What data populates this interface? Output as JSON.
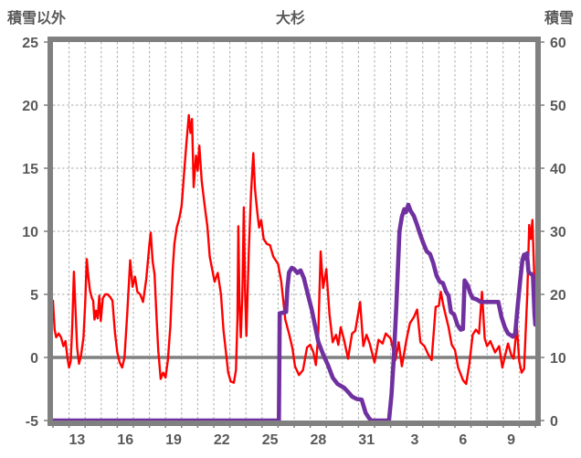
{
  "header": {
    "left_axis_title": "積雪以外",
    "chart_title": "大杉",
    "right_axis_title": "積雪"
  },
  "colors": {
    "temperature_line": "#ff0000",
    "snow_line": "#7030a0",
    "axis_border": "#808080",
    "zero_line": "#808080",
    "gridline": "#ababab",
    "label_text": "#595959",
    "background": "#ffffff"
  },
  "chart_data": {
    "type": "line",
    "title": "大杉",
    "x_axis": {
      "tick_labels": [
        "13",
        "16",
        "19",
        "22",
        "25",
        "28",
        "31",
        "3",
        "6",
        "9"
      ],
      "tick_day_offsets": [
        1.5,
        4.5,
        7.5,
        10.5,
        13.5,
        16.5,
        19.5,
        22.5,
        25.5,
        28.5
      ],
      "range_days": [
        0,
        30
      ],
      "gridline_every_days": 1
    },
    "y_left": {
      "title": "積雪以外",
      "ticks": [
        25,
        20,
        15,
        10,
        5,
        0,
        -5
      ],
      "range": [
        -5,
        25
      ],
      "zero_line_solid": true
    },
    "y_right": {
      "title": "積雪",
      "ticks": [
        60,
        50,
        40,
        30,
        20,
        10,
        0
      ],
      "range": [
        0,
        60
      ]
    },
    "grid": {
      "horizontal_dashed_at": [
        5,
        10,
        15,
        20
      ],
      "vertical_dashed": true
    },
    "legend": "none",
    "series": [
      {
        "name": "積雪以外",
        "axis": "left",
        "color": "#ff0000",
        "width": 2.4,
        "points": [
          [
            0,
            4.5
          ],
          [
            0.1,
            2.2
          ],
          [
            0.2,
            1.6
          ],
          [
            0.35,
            1.9
          ],
          [
            0.5,
            1.6
          ],
          [
            0.65,
            0.9
          ],
          [
            0.78,
            1.3
          ],
          [
            0.9,
            0.0
          ],
          [
            1.0,
            -0.8
          ],
          [
            1.1,
            -0.3
          ],
          [
            1.2,
            2.5
          ],
          [
            1.3,
            6.8
          ],
          [
            1.42,
            3.2
          ],
          [
            1.5,
            0.8
          ],
          [
            1.62,
            -0.5
          ],
          [
            1.75,
            0.2
          ],
          [
            1.9,
            1.6
          ],
          [
            2.0,
            4.2
          ],
          [
            2.1,
            7.8
          ],
          [
            2.2,
            6.4
          ],
          [
            2.3,
            5.3
          ],
          [
            2.42,
            4.7
          ],
          [
            2.5,
            4.5
          ],
          [
            2.58,
            3.0
          ],
          [
            2.68,
            3.7
          ],
          [
            2.78,
            3.1
          ],
          [
            2.88,
            4.9
          ],
          [
            2.97,
            2.9
          ],
          [
            3.1,
            4.7
          ],
          [
            3.25,
            5.0
          ],
          [
            3.4,
            5.0
          ],
          [
            3.55,
            4.8
          ],
          [
            3.7,
            4.5
          ],
          [
            3.85,
            2.0
          ],
          [
            4.0,
            0.4
          ],
          [
            4.15,
            -0.4
          ],
          [
            4.3,
            -0.8
          ],
          [
            4.45,
            0.0
          ],
          [
            4.62,
            3.5
          ],
          [
            4.8,
            7.7
          ],
          [
            4.95,
            5.6
          ],
          [
            5.1,
            6.4
          ],
          [
            5.25,
            5.2
          ],
          [
            5.42,
            5.0
          ],
          [
            5.6,
            4.4
          ],
          [
            5.8,
            6.2
          ],
          [
            6.0,
            9.0
          ],
          [
            6.08,
            9.9
          ],
          [
            6.2,
            7.6
          ],
          [
            6.32,
            6.6
          ],
          [
            6.45,
            3.0
          ],
          [
            6.55,
            0.5
          ],
          [
            6.7,
            -1.7
          ],
          [
            6.85,
            -1.2
          ],
          [
            7.0,
            -1.6
          ],
          [
            7.15,
            -0.2
          ],
          [
            7.3,
            2.5
          ],
          [
            7.45,
            7.0
          ],
          [
            7.55,
            9.0
          ],
          [
            7.7,
            10.3
          ],
          [
            7.85,
            11.0
          ],
          [
            8.0,
            12.0
          ],
          [
            8.15,
            14.5
          ],
          [
            8.3,
            17.0
          ],
          [
            8.45,
            19.2
          ],
          [
            8.55,
            17.8
          ],
          [
            8.65,
            18.9
          ],
          [
            8.75,
            13.5
          ],
          [
            8.9,
            16.0
          ],
          [
            9.0,
            14.8
          ],
          [
            9.1,
            16.8
          ],
          [
            9.25,
            14.0
          ],
          [
            9.44,
            12.0
          ],
          [
            9.6,
            10.4
          ],
          [
            9.75,
            8.0
          ],
          [
            9.9,
            7.0
          ],
          [
            10.05,
            6.0
          ],
          [
            10.25,
            6.7
          ],
          [
            10.45,
            5.0
          ],
          [
            10.6,
            2.2
          ],
          [
            10.75,
            0.5
          ],
          [
            10.9,
            -1.2
          ],
          [
            11.05,
            -1.9
          ],
          [
            11.25,
            -2.0
          ],
          [
            11.38,
            -1.0
          ],
          [
            11.47,
            3.0
          ],
          [
            11.53,
            10.4
          ],
          [
            11.6,
            4.2
          ],
          [
            11.68,
            1.6
          ],
          [
            11.78,
            5.0
          ],
          [
            11.87,
            11.9
          ],
          [
            11.95,
            5.2
          ],
          [
            12.03,
            1.7
          ],
          [
            12.18,
            8.5
          ],
          [
            12.32,
            13.0
          ],
          [
            12.46,
            16.2
          ],
          [
            12.56,
            13.4
          ],
          [
            12.7,
            11.6
          ],
          [
            12.82,
            10.3
          ],
          [
            12.95,
            10.9
          ],
          [
            13.1,
            9.4
          ],
          [
            13.3,
            9.0
          ],
          [
            13.5,
            8.9
          ],
          [
            13.7,
            8.0
          ],
          [
            13.85,
            7.7
          ],
          [
            14.0,
            7.4
          ],
          [
            14.2,
            6.0
          ],
          [
            14.45,
            3.0
          ],
          [
            14.7,
            1.8
          ],
          [
            14.9,
            0.7
          ],
          [
            15.05,
            -0.7
          ],
          [
            15.3,
            -1.4
          ],
          [
            15.55,
            -1.0
          ],
          [
            15.8,
            0.8
          ],
          [
            16.0,
            1.0
          ],
          [
            16.2,
            0.4
          ],
          [
            16.35,
            -0.6
          ],
          [
            16.5,
            1.8
          ],
          [
            16.65,
            8.4
          ],
          [
            16.8,
            5.5
          ],
          [
            17.0,
            7.0
          ],
          [
            17.2,
            3.4
          ],
          [
            17.4,
            1.2
          ],
          [
            17.6,
            1.8
          ],
          [
            17.75,
            1.0
          ],
          [
            17.9,
            2.4
          ],
          [
            18.1,
            1.4
          ],
          [
            18.35,
            -0.1
          ],
          [
            18.6,
            1.9
          ],
          [
            18.8,
            2.1
          ],
          [
            19.1,
            4.4
          ],
          [
            19.3,
            0.9
          ],
          [
            19.5,
            1.8
          ],
          [
            19.7,
            1.1
          ],
          [
            20.0,
            -0.4
          ],
          [
            20.25,
            1.4
          ],
          [
            20.5,
            1.1
          ],
          [
            20.7,
            1.9
          ],
          [
            21.0,
            1.5
          ],
          [
            21.3,
            -0.2
          ],
          [
            21.5,
            1.2
          ],
          [
            21.7,
            -0.7
          ],
          [
            22.0,
            1.5
          ],
          [
            22.2,
            2.7
          ],
          [
            22.45,
            3.2
          ],
          [
            22.65,
            3.8
          ],
          [
            22.85,
            1.2
          ],
          [
            23.1,
            0.9
          ],
          [
            23.35,
            0.2
          ],
          [
            23.55,
            -0.2
          ],
          [
            23.8,
            4.0
          ],
          [
            24.0,
            4.1
          ],
          [
            24.12,
            5.2
          ],
          [
            24.3,
            4.0
          ],
          [
            24.6,
            2.4
          ],
          [
            24.8,
            1.0
          ],
          [
            25.0,
            0.6
          ],
          [
            25.2,
            -0.8
          ],
          [
            25.5,
            -1.8
          ],
          [
            25.7,
            -2.1
          ],
          [
            25.9,
            -0.5
          ],
          [
            26.1,
            1.8
          ],
          [
            26.3,
            2.2
          ],
          [
            26.5,
            1.9
          ],
          [
            26.68,
            5.2
          ],
          [
            26.85,
            1.5
          ],
          [
            27.0,
            0.9
          ],
          [
            27.2,
            1.3
          ],
          [
            27.5,
            0.4
          ],
          [
            27.75,
            0.9
          ],
          [
            27.95,
            -0.8
          ],
          [
            28.15,
            0.3
          ],
          [
            28.3,
            1.1
          ],
          [
            28.5,
            0.2
          ],
          [
            28.65,
            -0.1
          ],
          [
            28.85,
            2.5
          ],
          [
            29.0,
            -0.3
          ],
          [
            29.15,
            -1.2
          ],
          [
            29.3,
            -0.9
          ],
          [
            29.5,
            5.0
          ],
          [
            29.62,
            10.5
          ],
          [
            29.72,
            9.4
          ],
          [
            29.82,
            10.9
          ],
          [
            29.92,
            7.0
          ],
          [
            30.0,
            3.0
          ]
        ]
      },
      {
        "name": "積雪",
        "axis": "right",
        "color": "#7030a0",
        "width": 4.6,
        "points": [
          [
            0,
            0
          ],
          [
            14.05,
            0
          ],
          [
            14.1,
            17.0
          ],
          [
            14.5,
            17.2
          ],
          [
            14.58,
            21.0
          ],
          [
            14.68,
            23.5
          ],
          [
            14.85,
            24.2
          ],
          [
            15.0,
            24.0
          ],
          [
            15.2,
            23.4
          ],
          [
            15.4,
            23.8
          ],
          [
            15.6,
            22.6
          ],
          [
            15.85,
            20.0
          ],
          [
            16.1,
            17.5
          ],
          [
            16.5,
            12.5
          ],
          [
            16.8,
            10.5
          ],
          [
            17.1,
            8.8
          ],
          [
            17.4,
            6.8
          ],
          [
            17.7,
            5.8
          ],
          [
            18.1,
            5.2
          ],
          [
            18.4,
            4.4
          ],
          [
            18.6,
            3.8
          ],
          [
            18.9,
            3.4
          ],
          [
            19.2,
            3.3
          ],
          [
            19.45,
            1.2
          ],
          [
            19.65,
            0.4
          ],
          [
            19.8,
            0
          ],
          [
            20.9,
            0
          ],
          [
            21.05,
            4.0
          ],
          [
            21.2,
            10.0
          ],
          [
            21.35,
            18.0
          ],
          [
            21.55,
            30.0
          ],
          [
            21.7,
            32.3
          ],
          [
            21.85,
            33.5
          ],
          [
            21.95,
            33.0
          ],
          [
            22.1,
            34.2
          ],
          [
            22.25,
            33.2
          ],
          [
            22.45,
            32.4
          ],
          [
            22.65,
            31.0
          ],
          [
            22.85,
            29.4
          ],
          [
            23.05,
            28.0
          ],
          [
            23.25,
            26.8
          ],
          [
            23.45,
            26.4
          ],
          [
            23.65,
            25.0
          ],
          [
            23.85,
            23.0
          ],
          [
            24.05,
            22.0
          ],
          [
            24.25,
            21.8
          ],
          [
            24.45,
            20.4
          ],
          [
            24.6,
            19.8
          ],
          [
            24.75,
            17.2
          ],
          [
            24.95,
            16.8
          ],
          [
            25.15,
            15.2
          ],
          [
            25.35,
            14.4
          ],
          [
            25.5,
            14.5
          ],
          [
            25.6,
            22.2
          ],
          [
            25.8,
            21.4
          ],
          [
            25.95,
            20.2
          ],
          [
            26.1,
            19.4
          ],
          [
            26.35,
            19.2
          ],
          [
            26.6,
            18.8
          ],
          [
            27.3,
            18.8
          ],
          [
            27.7,
            18.8
          ],
          [
            27.9,
            16.4
          ],
          [
            28.1,
            14.8
          ],
          [
            28.3,
            13.8
          ],
          [
            28.6,
            13.3
          ],
          [
            28.75,
            13.8
          ],
          [
            28.9,
            18.0
          ],
          [
            29.05,
            22.0
          ],
          [
            29.2,
            25.5
          ],
          [
            29.3,
            26.3
          ],
          [
            29.38,
            25.7
          ],
          [
            29.48,
            26.5
          ],
          [
            29.58,
            23.5
          ],
          [
            29.7,
            23.3
          ],
          [
            29.85,
            23.0
          ],
          [
            29.95,
            17.0
          ],
          [
            30.0,
            15.2
          ]
        ]
      }
    ]
  }
}
